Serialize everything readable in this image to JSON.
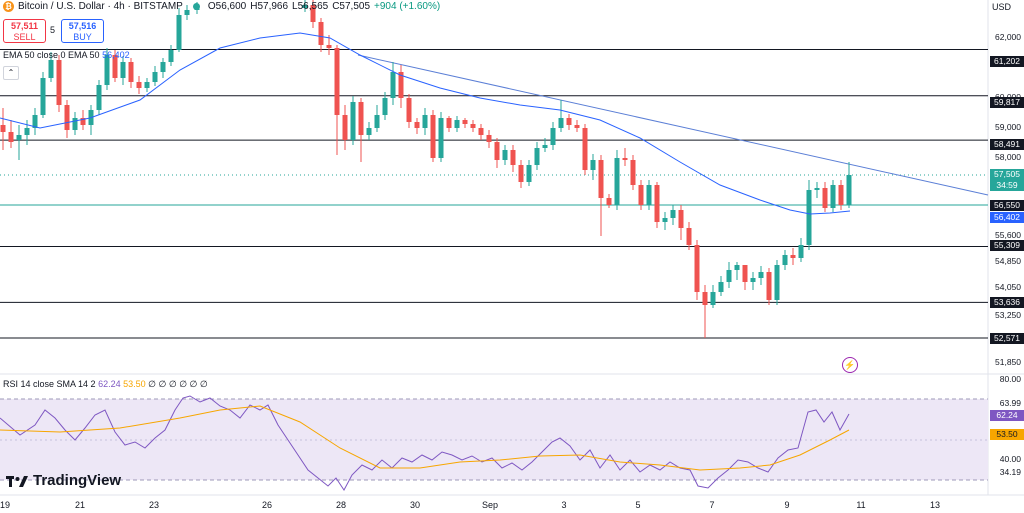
{
  "header": {
    "symbol_line": "Bitcoin / U.S. Dollar · 4h · BITSTAMP",
    "btc_icon_glyph": "₿",
    "open": "O56,600",
    "high": "H57,966",
    "low": "L56,565",
    "close": "C57,505",
    "change": "+904 (+1.60%)"
  },
  "trade": {
    "sell_price": "57,511",
    "sell_label": "SELL",
    "spread": "5",
    "buy_price": "57,516",
    "buy_label": "BUY"
  },
  "ema_legend": {
    "label": "EMA 50 close 0 EMA 50",
    "value": "56,402"
  },
  "collapse_glyph": "⌃",
  "rsi_legend": {
    "label": "RSI 14 close SMA 14 2",
    "rsi": "62.24",
    "sma": "53.50",
    "rest": "∅ ∅ ∅ ∅ ∅ ∅"
  },
  "brand": "TradingView",
  "axis": {
    "currency": "USD",
    "ticks": [
      "62,000",
      "60,000",
      "59,000",
      "58,000",
      "55,600",
      "54,850",
      "54,050",
      "53,250",
      "51,850",
      "80.00",
      "40.00"
    ],
    "levels": [
      "61,202",
      "59,817",
      "58,491",
      "56,550",
      "55,309",
      "53,636",
      "52,571"
    ],
    "current_price": "57,505",
    "countdown": "34:59",
    "ema_value": "56,402",
    "rsi_ticks": [
      "63.99",
      "34.19"
    ],
    "rsi_value": "62.24",
    "rsi_sma_value": "53.50"
  },
  "xaxis": [
    "19",
    "21",
    "23",
    "26",
    "28",
    "30",
    "Sep",
    "3",
    "5",
    "7",
    "9",
    "11",
    "13"
  ],
  "colors": {
    "up": "#26a69a",
    "down": "#ef5350",
    "ema": "#2962ff",
    "rsi": "#7e57c2",
    "rsi_sma": "#f7a600",
    "level": "#131722"
  },
  "chart_data": {
    "type": "candlestick",
    "timeframe": "4h",
    "price_levels": [
      61202,
      59817,
      58491,
      56550,
      55309,
      53636,
      52571
    ],
    "ema50_last": 56402,
    "rsi_last": 62.24,
    "rsi_sma_last": 53.5,
    "rsi_bands": [
      63.99,
      34.19
    ]
  }
}
